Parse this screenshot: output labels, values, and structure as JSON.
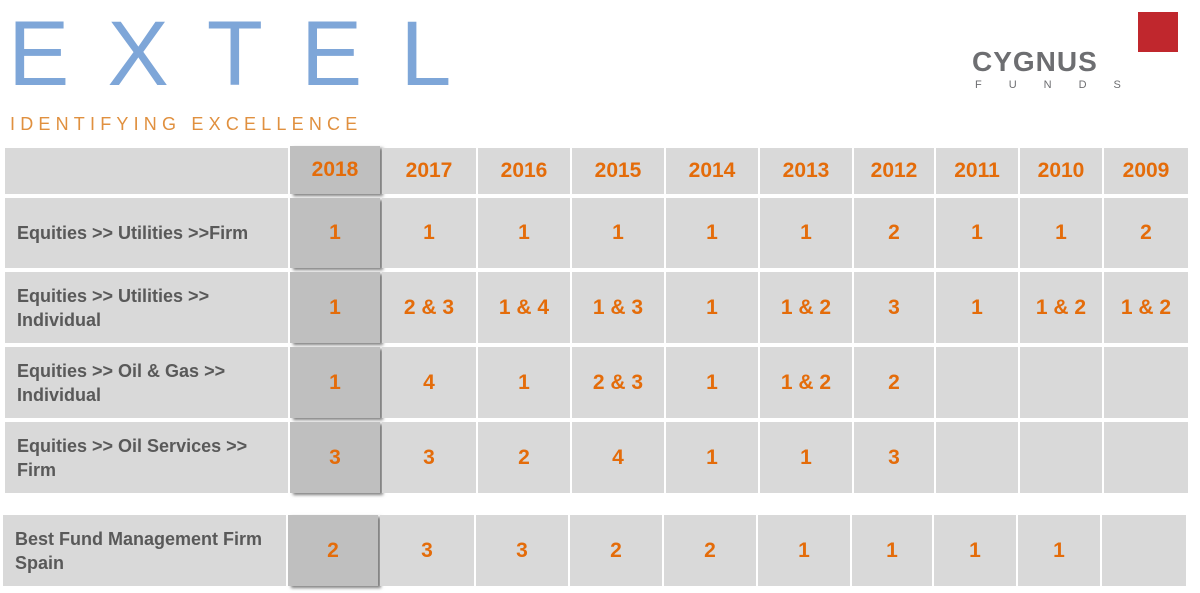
{
  "logos": {
    "extel": "EXTEL",
    "extel_tagline": "IDENTIFYING EXCELLENCE",
    "cygnus": "CYGNUS",
    "cygnus_sub": "FUNDS"
  },
  "table": {
    "header": [
      "2018",
      "2017",
      "2016",
      "2015",
      "2014",
      "2013",
      "2012",
      "2011",
      "2010",
      "2009"
    ],
    "rows": [
      {
        "label": "Equities >> Utilities >>Firm",
        "cells": [
          1,
          1,
          1,
          1,
          1,
          1,
          2,
          1,
          1,
          2
        ]
      },
      {
        "label": "Equities >> Utilities >> Individual",
        "cells": [
          1,
          "2 & 3",
          "1 & 4",
          "1 & 3",
          1,
          "1 & 2",
          3,
          1,
          "1 & 2",
          "1 & 2"
        ]
      },
      {
        "label": "Equities >> Oil & Gas >> Individual",
        "cells": [
          1,
          4,
          1,
          "2 & 3",
          1,
          "1 & 2",
          2
        ]
      },
      {
        "label": "Equities >> Oil Services >> Firm",
        "cells": [
          3,
          3,
          2,
          4,
          1,
          1,
          3
        ]
      }
    ]
  },
  "second_table": {
    "rows": [
      {
        "label": "Best Fund Management Firm Spain",
        "cells": [
          2,
          3,
          3,
          2,
          2,
          1,
          1,
          1,
          1
        ]
      }
    ]
  }
}
